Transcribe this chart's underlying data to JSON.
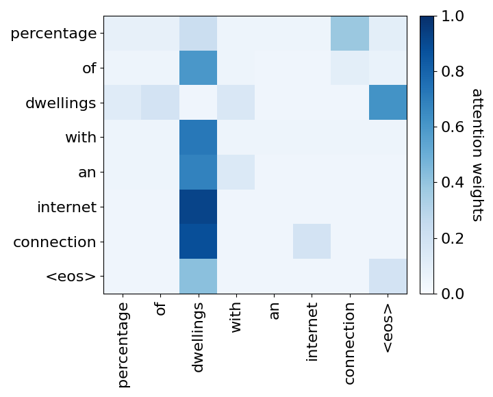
{
  "x_labels": [
    "percentage",
    "of",
    "dwellings",
    "with",
    "an",
    "internet",
    "connection",
    "<eos>"
  ],
  "y_labels": [
    "percentage",
    "of",
    "dwellings",
    "with",
    "an",
    "internet",
    "connection",
    "<eos>"
  ],
  "attention_matrix": [
    [
      0.08,
      0.08,
      0.22,
      0.05,
      0.05,
      0.05,
      0.38,
      0.1
    ],
    [
      0.05,
      0.05,
      0.6,
      0.05,
      0.04,
      0.04,
      0.1,
      0.07
    ],
    [
      0.12,
      0.18,
      0.04,
      0.15,
      0.04,
      0.04,
      0.04,
      0.62
    ],
    [
      0.05,
      0.05,
      0.72,
      0.05,
      0.05,
      0.05,
      0.05,
      0.05
    ],
    [
      0.05,
      0.05,
      0.68,
      0.14,
      0.04,
      0.04,
      0.04,
      0.04
    ],
    [
      0.04,
      0.04,
      0.92,
      0.04,
      0.04,
      0.04,
      0.04,
      0.04
    ],
    [
      0.04,
      0.04,
      0.88,
      0.04,
      0.04,
      0.18,
      0.04,
      0.04
    ],
    [
      0.04,
      0.04,
      0.42,
      0.04,
      0.04,
      0.04,
      0.04,
      0.18
    ]
  ],
  "cmap": "Blues",
  "colorbar_label": "attention weights",
  "vmin": 0.0,
  "vmax": 1.0,
  "tick_fontsize": 16,
  "colorbar_fontsize": 16
}
